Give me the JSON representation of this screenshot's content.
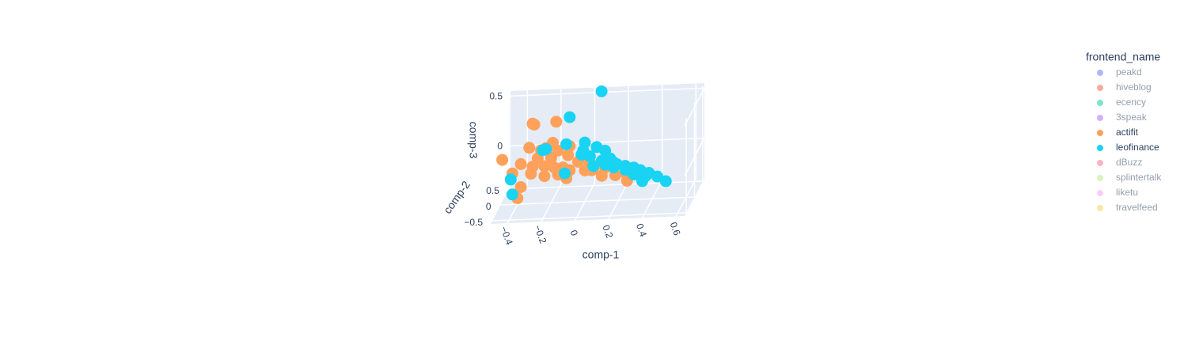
{
  "chart_data": {
    "type": "scatter3d",
    "x_label": "comp-1",
    "y_label": "comp-2",
    "z_label": "comp-3",
    "legend_title": "frontend_name",
    "legend_position": "right",
    "xlim": [
      -0.5,
      0.65
    ],
    "ylim": [
      -0.6,
      0.6
    ],
    "zlim": [
      -0.4,
      0.55
    ],
    "xticks": [
      {
        "value": -0.4,
        "label": "−0.4"
      },
      {
        "value": -0.2,
        "label": "−0.2"
      },
      0,
      0.2,
      0.4,
      0.6
    ],
    "yticks": [
      {
        "value": -0.5,
        "label": "−0.5"
      },
      0,
      0.5
    ],
    "zticks": [
      0,
      0.5
    ],
    "grid": true,
    "series": [
      {
        "name": "peakd",
        "color": "#636efa",
        "visible": "legendonly"
      },
      {
        "name": "hiveblog",
        "color": "#EF553B",
        "visible": "legendonly"
      },
      {
        "name": "ecency",
        "color": "#00cc96",
        "visible": "legendonly"
      },
      {
        "name": "3speak",
        "color": "#ab63fa",
        "visible": "legendonly"
      },
      {
        "name": "actifit",
        "color": "#FFA15A",
        "x": [
          -0.31,
          -0.3,
          -0.17,
          -0.33,
          -0.49,
          -0.43,
          -0.38,
          -0.4,
          -0.23,
          -0.16,
          -0.26,
          -0.2,
          -0.1,
          -0.31,
          -0.38,
          -0.24,
          -0.18,
          -0.13,
          -0.32,
          -0.24,
          -0.11,
          -0.04,
          0.03,
          0.04,
          0.1,
          0.18,
          0.25,
          0.32,
          -0.02,
          0.05,
          0.12,
          -0.09,
          -0.28,
          -0.16,
          0.0,
          -0.19,
          -0.09,
          0.12,
          0.24
        ],
        "y": [
          0,
          0,
          0,
          0,
          0,
          0,
          0,
          0,
          0,
          0,
          0,
          0,
          0,
          0,
          0,
          0,
          0,
          0,
          0,
          0,
          0,
          0,
          0,
          0,
          0,
          0,
          0,
          0,
          0,
          0,
          0,
          0,
          0,
          0,
          0,
          0,
          0,
          0,
          0
        ],
        "z": [
          0.4,
          0.39,
          0.41,
          0.16,
          0.05,
          -0.09,
          -0.23,
          -0.34,
          0.15,
          0.12,
          0.13,
          0.05,
          0.07,
          -0.03,
          0.0,
          -0.03,
          -0.05,
          -0.05,
          -0.1,
          -0.13,
          -0.16,
          0.0,
          -0.01,
          -0.09,
          -0.15,
          -0.15,
          -0.21,
          -0.15,
          0.03,
          -0.07,
          -0.07,
          0.16,
          0.05,
          -0.12,
          -0.09,
          0.2,
          -0.08,
          -0.05,
          -0.13
        ]
      },
      {
        "name": "leofinance",
        "color": "#19d3f3",
        "x": [
          0.05,
          -0.09,
          -0.25,
          -0.23,
          -0.11,
          0.0,
          -0.01,
          0.07,
          0.12,
          0.03,
          0.1,
          0.17,
          0.24,
          0.29,
          0.33,
          0.38,
          0.43,
          0.48,
          0.34,
          0.24,
          0.17,
          -0.12,
          -0.44,
          -0.43,
          0.19,
          0.15,
          0.05,
          -0.02,
          0.29,
          0.36,
          0.12,
          0.26
        ],
        "y": [
          0.5,
          0,
          0,
          0,
          0,
          0,
          0,
          0,
          0,
          0,
          0,
          0,
          0,
          0,
          0,
          0,
          0,
          0,
          0,
          0,
          0,
          0,
          0,
          0,
          0,
          0,
          0,
          0,
          0,
          0,
          0,
          0
        ],
        "z": [
          0.54,
          0.45,
          0.13,
          0.14,
          0.18,
          0.19,
          0.11,
          0.14,
          0.1,
          0.05,
          0.0,
          -0.02,
          -0.06,
          -0.08,
          -0.11,
          -0.14,
          -0.18,
          -0.23,
          -0.22,
          -0.1,
          -0.07,
          -0.11,
          -0.15,
          -0.3,
          -0.04,
          0.02,
          -0.05,
          0.07,
          -0.15,
          -0.17,
          -0.04,
          -0.09
        ]
      },
      {
        "name": "dBuzz",
        "color": "#FF6692",
        "visible": "legendonly"
      },
      {
        "name": "splintertalk",
        "color": "#B6E880",
        "visible": "legendonly"
      },
      {
        "name": "liketu",
        "color": "#FF97FF",
        "visible": "legendonly"
      },
      {
        "name": "travelfeed",
        "color": "#FECB52",
        "visible": "legendonly"
      }
    ]
  }
}
